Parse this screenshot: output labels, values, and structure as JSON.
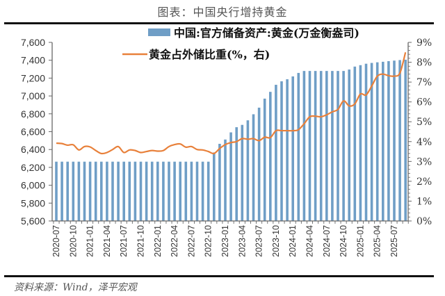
{
  "figure_title": "图表：中国央行增持黄金",
  "source": "资料来源：Wind，泽平宏观",
  "colors": {
    "bar": "#6f9ec6",
    "line": "#e8803a",
    "axis": "#666666"
  },
  "chart_data": {
    "type": "bar+line",
    "title": "图表：中国央行增持黄金",
    "legend": [
      {
        "name": "中国:官方储备资产:黄金(万金衡盎司)",
        "kind": "bar",
        "axis": "left"
      },
      {
        "name": "黄金占外储比重(%，右)",
        "kind": "line",
        "axis": "right"
      }
    ],
    "legend_placement": "top-center",
    "left_axis": {
      "ylim": [
        5600,
        7600
      ],
      "ticks": [
        "5,600",
        "5,800",
        "6,000",
        "6,200",
        "6,400",
        "6,600",
        "6,800",
        "7,000",
        "7,200",
        "7,400",
        "7,600"
      ],
      "tick_values": [
        5600,
        5800,
        6000,
        6200,
        6400,
        6600,
        6800,
        7000,
        7200,
        7400,
        7600
      ]
    },
    "right_axis": {
      "ylim": [
        0,
        9
      ],
      "ticks": [
        "0%",
        "1%",
        "2%",
        "3%",
        "4%",
        "5%",
        "6%",
        "7%",
        "8%",
        "9%"
      ],
      "tick_values": [
        0,
        1,
        2,
        3,
        4,
        5,
        6,
        7,
        8,
        9
      ]
    },
    "x_tick_labels": [
      "2020-07",
      "2020-10",
      "2021-01",
      "2021-04",
      "2021-07",
      "2021-10",
      "2022-01",
      "2022-04",
      "2022-07",
      "2022-10",
      "2023-01",
      "2023-04",
      "2023-07",
      "2023-10",
      "2024-01",
      "2024-04",
      "2024-07",
      "2024-10",
      "2025-01",
      "2025-04",
      "2025-07"
    ],
    "x": [
      "2020-07",
      "2020-08",
      "2020-09",
      "2020-10",
      "2020-11",
      "2020-12",
      "2021-01",
      "2021-02",
      "2021-03",
      "2021-04",
      "2021-05",
      "2021-06",
      "2021-07",
      "2021-08",
      "2021-09",
      "2021-10",
      "2021-11",
      "2021-12",
      "2022-01",
      "2022-02",
      "2022-03",
      "2022-04",
      "2022-05",
      "2022-06",
      "2022-07",
      "2022-08",
      "2022-09",
      "2022-10",
      "2022-11",
      "2022-12",
      "2023-01",
      "2023-02",
      "2023-03",
      "2023-04",
      "2023-05",
      "2023-06",
      "2023-07",
      "2023-08",
      "2023-09",
      "2023-10",
      "2023-11",
      "2023-12",
      "2024-01",
      "2024-02",
      "2024-03",
      "2024-04",
      "2024-05",
      "2024-06",
      "2024-07",
      "2024-08",
      "2024-09",
      "2024-10",
      "2024-11",
      "2024-12",
      "2025-01",
      "2025-02",
      "2025-03",
      "2025-04",
      "2025-05",
      "2025-06",
      "2025-07",
      "2025-08",
      "2025-09"
    ],
    "series": [
      {
        "name": "中国:官方储备资产:黄金(万金衡盎司)",
        "type": "bar",
        "axis": "left",
        "values": [
          6264,
          6264,
          6264,
          6264,
          6264,
          6264,
          6264,
          6264,
          6264,
          6264,
          6264,
          6264,
          6264,
          6264,
          6264,
          6264,
          6264,
          6264,
          6264,
          6264,
          6264,
          6264,
          6264,
          6264,
          6264,
          6264,
          6264,
          6264,
          6367,
          6464,
          6512,
          6592,
          6650,
          6676,
          6727,
          6795,
          6869,
          6970,
          7046,
          7125,
          7164,
          7187,
          7219,
          7258,
          7280,
          7280,
          7280,
          7280,
          7280,
          7280,
          7280,
          7280,
          7296,
          7329,
          7345,
          7361,
          7370,
          7377,
          7383,
          7390,
          7396,
          7402,
          7406
        ]
      },
      {
        "name": "黄金占外储比重(%，右)",
        "type": "line",
        "axis": "right",
        "values": [
          3.92,
          3.9,
          3.82,
          3.84,
          3.58,
          3.75,
          3.73,
          3.55,
          3.4,
          3.45,
          3.6,
          3.75,
          3.45,
          3.58,
          3.55,
          3.45,
          3.5,
          3.55,
          3.52,
          3.55,
          3.75,
          3.85,
          3.88,
          3.72,
          3.75,
          3.6,
          3.58,
          3.5,
          3.4,
          3.65,
          3.85,
          3.95,
          4.0,
          4.15,
          4.12,
          4.15,
          4.05,
          4.22,
          4.2,
          4.55,
          4.55,
          4.55,
          4.55,
          4.6,
          4.9,
          5.25,
          5.28,
          5.25,
          5.35,
          5.5,
          5.62,
          6.05,
          5.8,
          5.9,
          6.4,
          6.35,
          6.8,
          7.3,
          7.4,
          7.32,
          7.3,
          7.45,
          8.5
        ]
      }
    ]
  }
}
